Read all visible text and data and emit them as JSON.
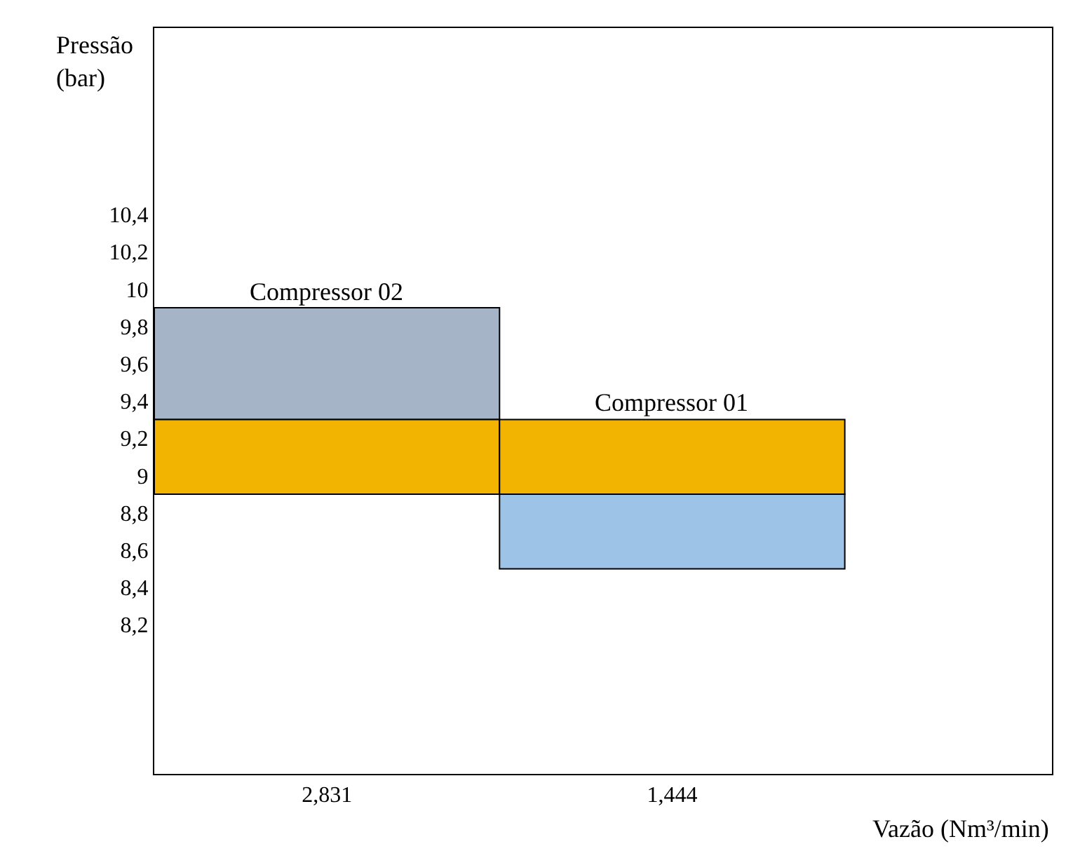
{
  "chart_data": {
    "type": "bar",
    "categories": [
      "2,831",
      "1,444"
    ],
    "series": [
      {
        "color": "#a6b4c8",
        "base": [
          9.3,
          null
        ],
        "values": [
          0.6,
          null
        ]
      },
      {
        "color": "#f2b400",
        "base": [
          8.9,
          8.9
        ],
        "values": [
          0.4,
          0.4
        ]
      },
      {
        "color": "#9dc3e6",
        "base": [
          null,
          8.5
        ],
        "values": [
          null,
          0.4
        ]
      }
    ],
    "ylabel": "Pressão (bar)",
    "xlabel": "Vazão (Nm³/min)",
    "ylim": [
      7.4,
      11.4
    ],
    "yticks": [
      {
        "value": 8.2,
        "label": "8,2"
      },
      {
        "value": 8.4,
        "label": "8,4"
      },
      {
        "value": 8.6,
        "label": "8,6"
      },
      {
        "value": 8.8,
        "label": "8,8"
      },
      {
        "value": 9,
        "label": "9"
      },
      {
        "value": 9.2,
        "label": "9,2"
      },
      {
        "value": 9.4,
        "label": "9,4"
      },
      {
        "value": 9.6,
        "label": "9,6"
      },
      {
        "value": 9.8,
        "label": "9,8"
      },
      {
        "value": 10,
        "label": "10"
      },
      {
        "value": 10.2,
        "label": "10,2"
      },
      {
        "value": 10.4,
        "label": "10,4"
      }
    ],
    "annotations": [
      {
        "text": "Compressor 02",
        "x": "2,831",
        "y": 9.9
      },
      {
        "text": "Compressor 01",
        "x": "1,444",
        "y": 9.3
      }
    ]
  }
}
